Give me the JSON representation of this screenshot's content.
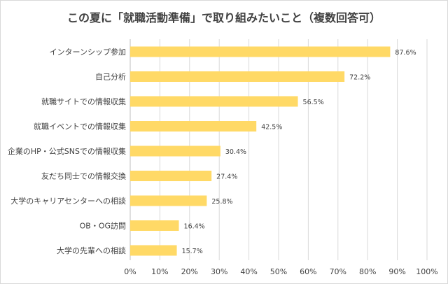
{
  "chart_data": {
    "type": "bar",
    "orientation": "horizontal",
    "title": "この夏に「就職活動準備」で取り組みたいこと（複数回答可）",
    "categories": [
      "インターンシップ参加",
      "自己分析",
      "就職サイトでの情報収集",
      "就職イベントでの情報収集",
      "企業のHP・公式SNSでの情報収集",
      "友だち同士での情報交換",
      "大学のキャリアセンターへの相談",
      "OB・OG訪問",
      "大学の先輩への相談"
    ],
    "values": [
      87.6,
      72.2,
      56.5,
      42.5,
      30.4,
      27.4,
      25.8,
      16.4,
      15.7
    ],
    "value_labels": [
      "87.6%",
      "72.2%",
      "56.5%",
      "42.5%",
      "30.4%",
      "27.4%",
      "25.8%",
      "16.4%",
      "15.7%"
    ],
    "x_ticks": [
      "0%",
      "10%",
      "20%",
      "30%",
      "40%",
      "50%",
      "60%",
      "70%",
      "80%",
      "90%",
      "100%"
    ],
    "xlim": [
      0,
      100
    ],
    "grid": "vertical",
    "legend": "none",
    "bar_color": "#FFD966",
    "grid_color": "#d9d9d9"
  }
}
